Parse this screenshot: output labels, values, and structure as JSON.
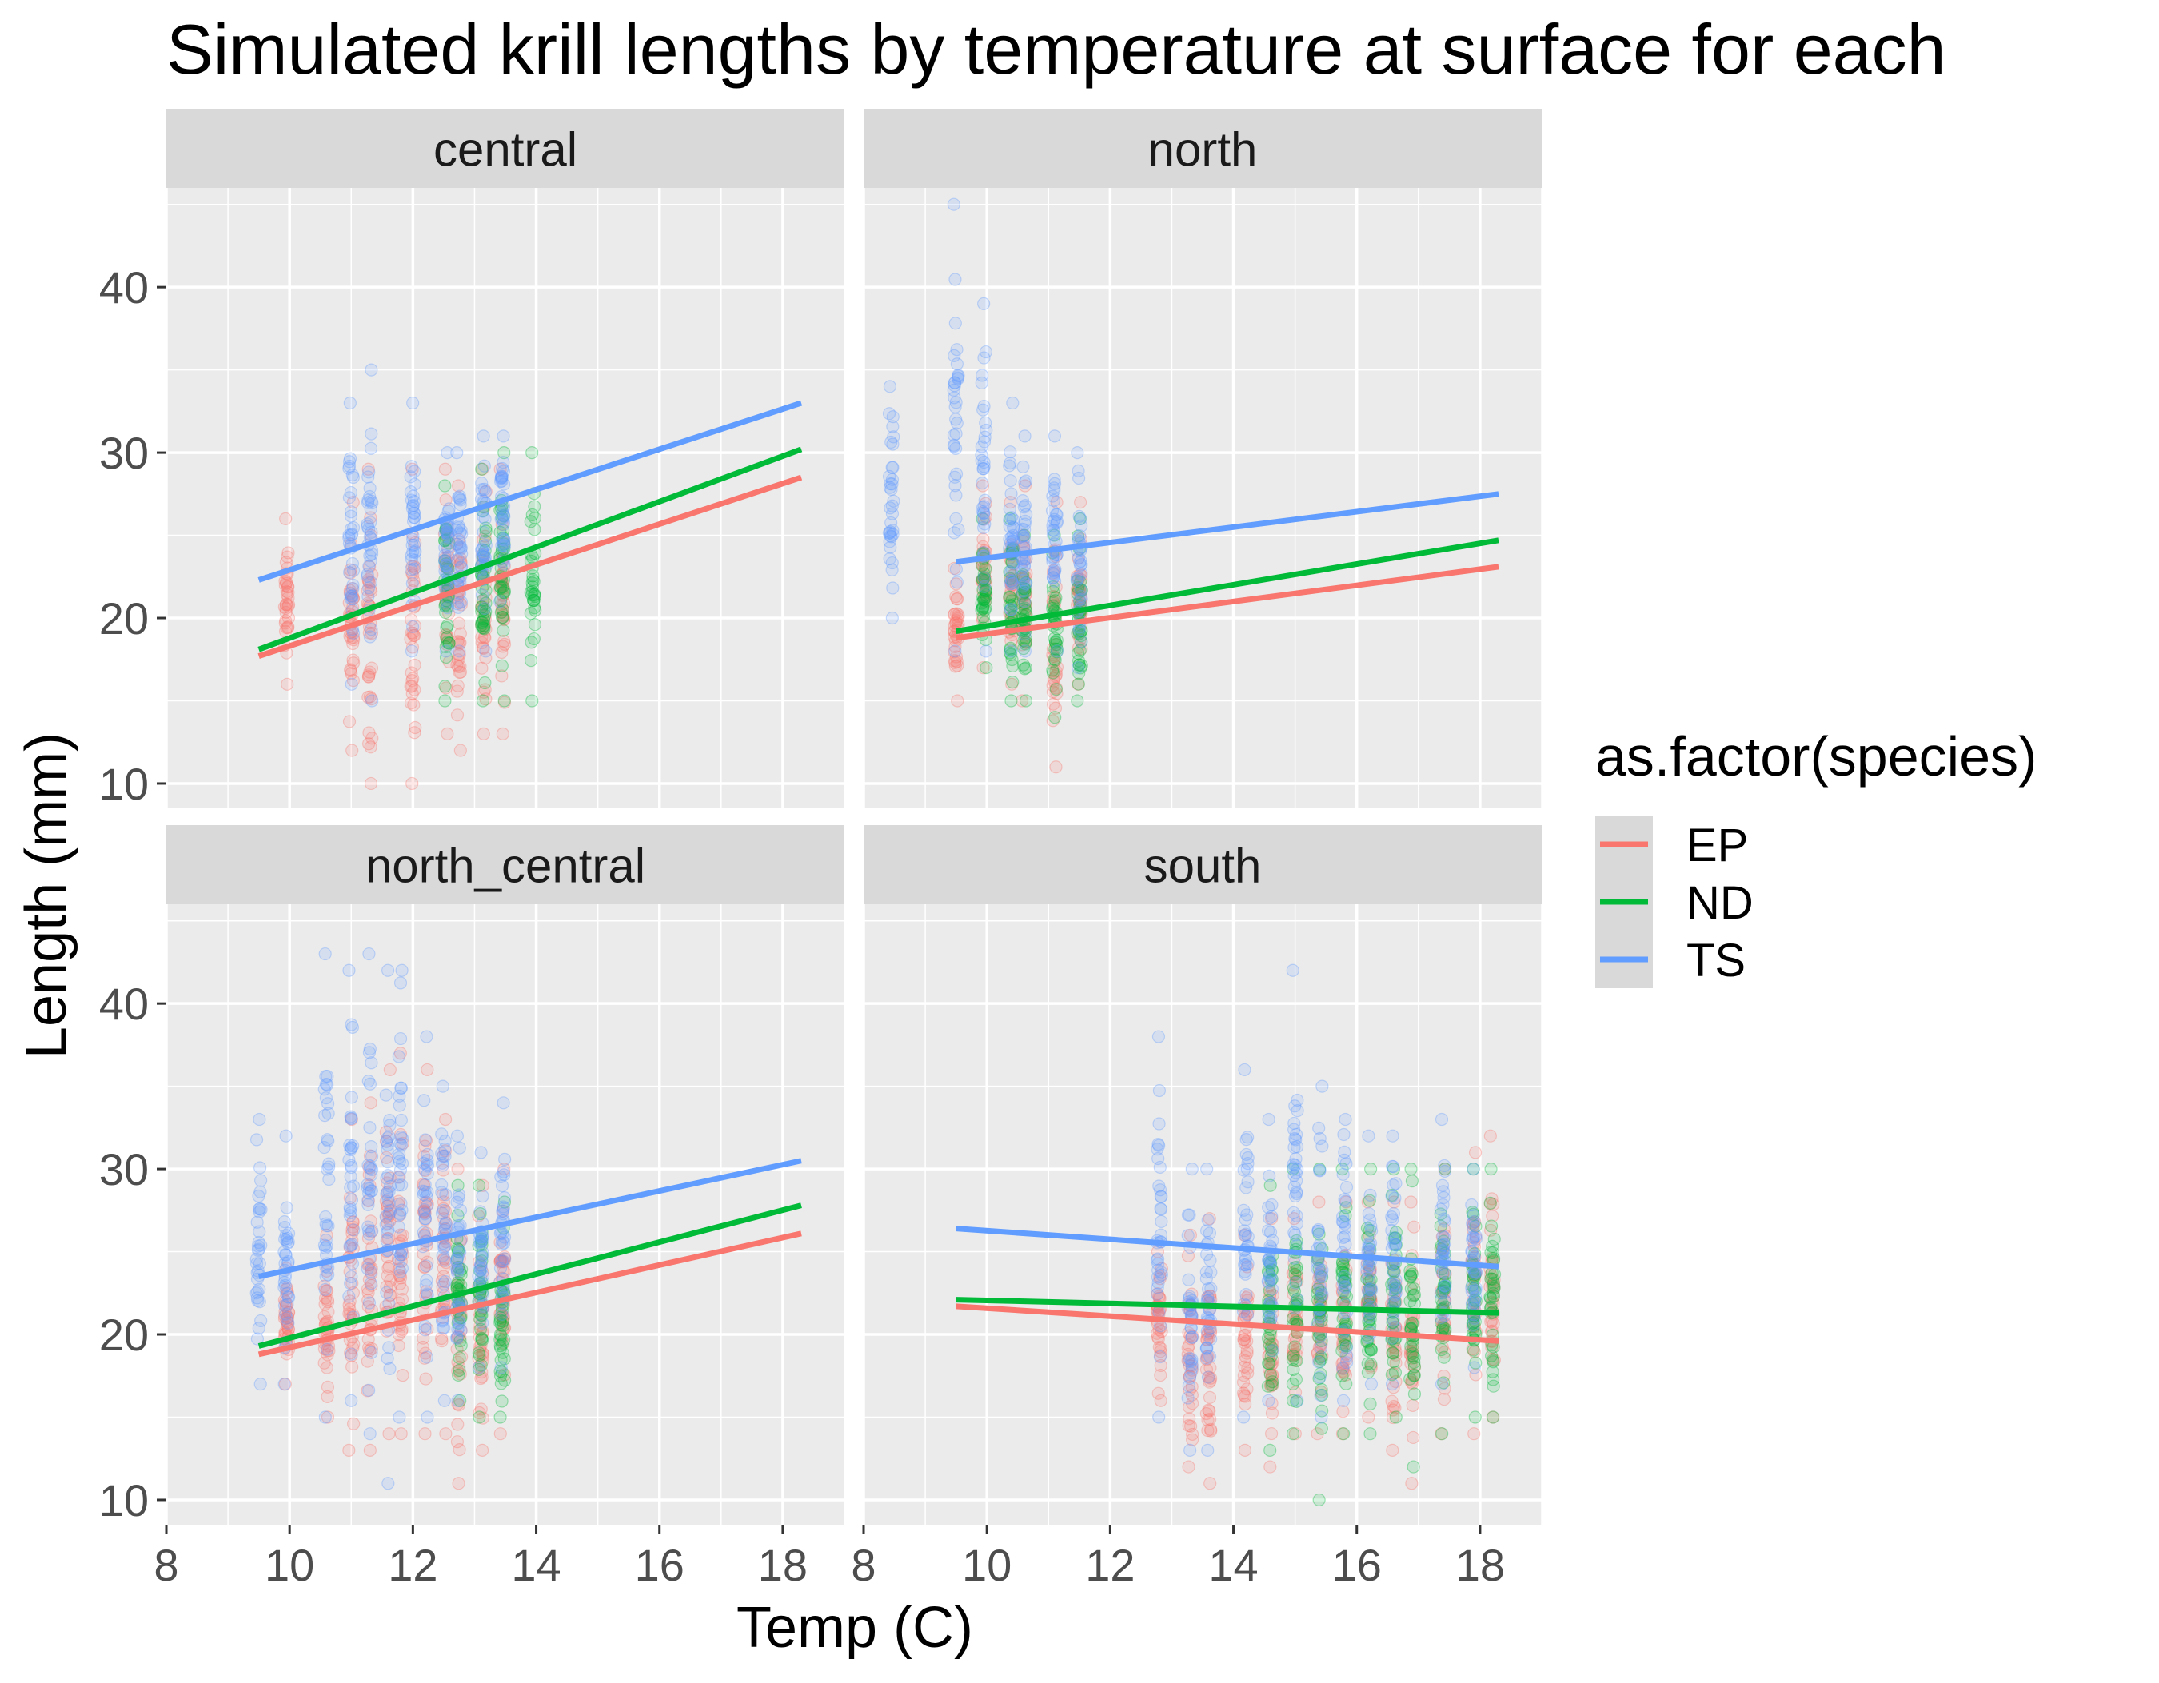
{
  "chart_data": {
    "type": "scatter",
    "title": "Simulated krill lengths by temperature at surface for each",
    "xlabel": "Temp (C)",
    "ylabel": "Length (mm)",
    "xlim": [
      8,
      19
    ],
    "ylim": [
      8.5,
      46
    ],
    "x_ticks": [
      8,
      10,
      12,
      14,
      16,
      18
    ],
    "y_ticks": [
      10,
      20,
      30,
      40
    ],
    "grid": true,
    "legend": {
      "title": "as.factor(species)",
      "placement": "right",
      "entries": [
        {
          "label": "EP",
          "color": "#F8766D"
        },
        {
          "label": "ND",
          "color": "#00BA38"
        },
        {
          "label": "TS",
          "color": "#619CFF"
        }
      ]
    },
    "facets": [
      {
        "name": "central",
        "points": [
          {
            "species": "EP",
            "x": [
              9.95,
              11.0,
              11.3,
              12.0,
              12.55,
              12.75,
              13.15,
              13.45
            ],
            "y_min": [
              16,
              12,
              10,
              10,
              13,
              12,
              13,
              13
            ],
            "y_max": [
              26,
              27,
              29,
              29,
              29,
              28,
              29,
              29
            ]
          },
          {
            "species": "ND",
            "x": [
              12.55,
              13.15,
              13.45,
              13.95
            ],
            "y_min": [
              15,
              15,
              15,
              15
            ],
            "y_max": [
              28,
              29,
              30,
              30
            ]
          },
          {
            "species": "TS",
            "x": [
              11.0,
              11.3,
              12.0,
              12.55,
              12.75,
              13.15,
              13.45
            ],
            "y_min": [
              16,
              15,
              18,
              18,
              18,
              18,
              21
            ],
            "y_max": [
              33,
              35,
              33,
              30,
              30,
              31,
              31
            ]
          }
        ],
        "fits": [
          {
            "species": "EP",
            "x": [
              9.5,
              18.3
            ],
            "y": [
              17.7,
              28.5
            ]
          },
          {
            "species": "ND",
            "x": [
              9.5,
              18.3
            ],
            "y": [
              18.1,
              30.2
            ]
          },
          {
            "species": "TS",
            "x": [
              9.5,
              18.3
            ],
            "y": [
              22.3,
              33.0
            ]
          }
        ]
      },
      {
        "name": "north",
        "points": [
          {
            "species": "EP",
            "x": [
              9.5,
              9.95,
              10.4,
              10.6,
              11.1,
              11.5
            ],
            "y_min": [
              15,
              17,
              16,
              15,
              11,
              16
            ],
            "y_max": [
              23,
              28,
              27,
              28,
              27,
              27
            ]
          },
          {
            "species": "ND",
            "x": [
              9.95,
              10.4,
              10.6,
              11.1,
              11.5
            ],
            "y_min": [
              17,
              15,
              15,
              14,
              15
            ],
            "y_max": [
              26,
              26,
              25,
              25,
              26
            ]
          },
          {
            "species": "TS",
            "x": [
              8.45,
              9.5,
              9.95,
              10.4,
              10.6,
              11.1,
              11.5
            ],
            "y_min": [
              20,
              18,
              18,
              18,
              18,
              18,
              17
            ],
            "y_max": [
              34,
              45,
              39,
              33,
              31,
              31,
              30
            ]
          }
        ],
        "fits": [
          {
            "species": "EP",
            "x": [
              9.5,
              18.3
            ],
            "y": [
              18.8,
              23.1
            ]
          },
          {
            "species": "ND",
            "x": [
              9.5,
              18.3
            ],
            "y": [
              19.2,
              24.7
            ]
          },
          {
            "species": "TS",
            "x": [
              9.5,
              18.3
            ],
            "y": [
              23.4,
              27.5
            ]
          }
        ]
      },
      {
        "name": "north_central",
        "points": [
          {
            "species": "EP",
            "x": [
              9.95,
              10.6,
              11.0,
              11.3,
              11.6,
              11.8,
              12.2,
              12.5,
              12.75,
              13.1,
              13.45
            ],
            "y_min": [
              17,
              15,
              13,
              13,
              14,
              14,
              14,
              14,
              11,
              13,
              14
            ],
            "y_max": [
              24,
              26,
              33,
              34,
              36,
              37,
              36,
              33,
              30,
              29,
              30
            ]
          },
          {
            "species": "ND",
            "x": [
              12.75,
              13.1,
              13.45
            ],
            "y_min": [
              16,
              15,
              15
            ],
            "y_max": [
              29,
              29,
              28
            ]
          },
          {
            "species": "TS",
            "x": [
              9.5,
              9.95,
              10.6,
              11.0,
              11.3,
              11.6,
              11.8,
              12.2,
              12.5,
              12.75,
              13.1,
              13.45
            ],
            "y_min": [
              17,
              17,
              15,
              16,
              14,
              11,
              15,
              15,
              16,
              16,
              18,
              18
            ],
            "y_max": [
              33,
              32,
              43,
              42,
              43,
              42,
              42,
              38,
              35,
              32,
              31,
              34
            ]
          }
        ],
        "fits": [
          {
            "species": "EP",
            "x": [
              9.5,
              18.3
            ],
            "y": [
              18.8,
              26.1
            ]
          },
          {
            "species": "ND",
            "x": [
              9.5,
              18.3
            ],
            "y": [
              19.3,
              27.8
            ]
          },
          {
            "species": "TS",
            "x": [
              9.5,
              18.3
            ],
            "y": [
              23.5,
              30.5
            ]
          }
        ]
      },
      {
        "name": "south",
        "points": [
          {
            "species": "EP",
            "x": [
              12.8,
              13.3,
              13.6,
              14.2,
              14.6,
              15.0,
              15.4,
              15.8,
              16.2,
              16.6,
              16.9,
              17.4,
              17.9,
              18.2
            ],
            "y_min": [
              16,
              12,
              11,
              13,
              12,
              14,
              14,
              14,
              15,
              13,
              11,
              14,
              14,
              15
            ],
            "y_max": [
              25,
              26,
              27,
              26,
              27,
              27,
              28,
              28,
              28,
              28,
              28,
              30,
              31,
              32
            ]
          },
          {
            "species": "ND",
            "x": [
              14.6,
              15.0,
              15.4,
              15.8,
              16.2,
              16.6,
              16.9,
              17.4,
              17.9,
              18.2
            ],
            "y_min": [
              13,
              14,
              10,
              14,
              14,
              15,
              12,
              14,
              15,
              15
            ],
            "y_max": [
              29,
              30,
              30,
              30,
              30,
              30,
              30,
              30,
              30,
              30
            ]
          },
          {
            "species": "TS",
            "x": [
              12.8,
              13.3,
              13.6,
              14.2,
              14.6,
              15.0,
              15.4,
              15.8,
              16.2,
              16.6,
              17.4,
              17.9
            ],
            "y_min": [
              15,
              13,
              13,
              15,
              16,
              16,
              15,
              16,
              17,
              17,
              17,
              18
            ],
            "y_max": [
              38,
              30,
              30,
              36,
              33,
              42,
              35,
              33,
              32,
              32,
              33,
              30
            ]
          }
        ],
        "fits": [
          {
            "species": "EP",
            "x": [
              9.5,
              18.3
            ],
            "y": [
              21.7,
              19.6
            ]
          },
          {
            "species": "ND",
            "x": [
              9.5,
              18.3
            ],
            "y": [
              22.1,
              21.3
            ]
          },
          {
            "species": "TS",
            "x": [
              9.5,
              18.3
            ],
            "y": [
              26.4,
              24.1
            ]
          }
        ]
      }
    ]
  }
}
